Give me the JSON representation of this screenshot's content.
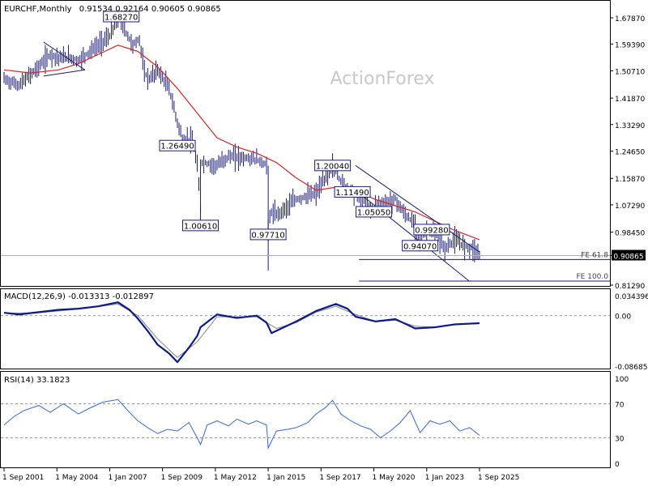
{
  "header": {
    "symbol": "EURCHF,Monthly",
    "ohlc": "0.91534 0.92164 0.90605 0.90865"
  },
  "watermark": "ActionForex",
  "colors": {
    "bars": "#1a1a7a",
    "sma": "#dd2222",
    "macd": "#0c1a8c",
    "signal": "#888888",
    "rsi": "#3366ee",
    "label_border": "#1a1a7a",
    "fe_line": "#1a1a7a",
    "grid_dash": "#999999"
  },
  "x_axis": {
    "labels": [
      "1 Sep 2001",
      "1 May 2004",
      "1 Jan 2007",
      "1 Sep 2009",
      "1 May 2012",
      "1 Jan 2015",
      "1 Sep 2017",
      "1 May 2020",
      "1 Jan 2023",
      "1 Sep 2025"
    ],
    "range": [
      "2001-09",
      "2025-09"
    ]
  },
  "chart_data": [
    {
      "type": "line",
      "subtype": "ohlc-bars",
      "title": "EURCHF,Monthly",
      "y_ticks": [
        "1.67870",
        "1.59390",
        "1.50710",
        "1.41870",
        "1.33290",
        "1.24650",
        "1.15870",
        "1.07290",
        "0.98450",
        "0.90865",
        "0.81290"
      ],
      "ylim": [
        0.8129,
        1.6787
      ],
      "last_price": "0.90865",
      "series": [
        {
          "name": "",
          "kind": "price",
          "x": [
            "2001-09",
            "2002-06",
            "2003-06",
            "2004-01",
            "2004-06",
            "2005-01",
            "2005-06",
            "2006-01",
            "2006-06",
            "2007-01",
            "2007-07",
            "2007-10",
            "2008-03",
            "2008-07",
            "2008-10",
            "2009-01",
            "2009-06",
            "2010-01",
            "2010-06",
            "2010-09",
            "2011-03",
            "2011-06",
            "2011-08",
            "2011-09",
            "2012-06",
            "2013-01",
            "2014-06",
            "2014-12",
            "2015-01",
            "2015-03",
            "2015-06",
            "2016-06",
            "2017-06",
            "2018-01",
            "2018-04",
            "2018-10",
            "2019-06",
            "2019-12",
            "2020-05",
            "2020-06",
            "2021-06",
            "2021-12",
            "2022-06",
            "2022-09",
            "2023-01",
            "2023-06",
            "2023-12",
            "2024-06",
            "2024-12",
            "2025-06",
            "2025-09"
          ],
          "y": [
            1.48,
            1.46,
            1.52,
            1.56,
            1.55,
            1.55,
            1.54,
            1.57,
            1.59,
            1.62,
            1.68,
            1.64,
            1.59,
            1.61,
            1.5,
            1.48,
            1.51,
            1.45,
            1.34,
            1.29,
            1.28,
            1.2,
            1.06,
            1.21,
            1.2,
            1.23,
            1.22,
            1.2,
            1.0,
            1.05,
            1.04,
            1.09,
            1.11,
            1.17,
            1.2,
            1.14,
            1.11,
            1.08,
            1.05,
            1.07,
            1.09,
            1.04,
            1.01,
            0.96,
            0.99,
            0.98,
            0.93,
            0.96,
            0.94,
            0.93,
            0.91
          ]
        },
        {
          "name": "",
          "kind": "sma",
          "x": [
            "2001-09",
            "2003-01",
            "2004-06",
            "2005-06",
            "2006-06",
            "2007-06",
            "2008-06",
            "2009-06",
            "2010-06",
            "2011-06",
            "2012-06",
            "2013-06",
            "2014-06",
            "2015-06",
            "2016-06",
            "2017-06",
            "2018-06",
            "2019-06",
            "2020-06",
            "2021-06",
            "2022-06",
            "2023-06",
            "2024-06",
            "2025-09"
          ],
          "y": [
            1.51,
            1.5,
            1.51,
            1.53,
            1.56,
            1.59,
            1.57,
            1.52,
            1.45,
            1.37,
            1.29,
            1.26,
            1.24,
            1.21,
            1.16,
            1.12,
            1.13,
            1.12,
            1.09,
            1.07,
            1.05,
            1.02,
            0.99,
            0.96
          ]
        }
      ],
      "annotations": [
        {
          "text": "1.68270",
          "x": "2007-08",
          "y": 1.6827
        },
        {
          "text": "1.26490",
          "x": "2010-06",
          "y": 1.2649
        },
        {
          "text": "1.00610",
          "x": "2011-08",
          "y": 1.0061
        },
        {
          "text": "0.97710",
          "x": "2015-01",
          "y": 0.9771
        },
        {
          "text": "1.20040",
          "x": "2018-04",
          "y": 1.2004
        },
        {
          "text": "1.11490",
          "x": "2019-04",
          "y": 1.1149
        },
        {
          "text": "1.05050",
          "x": "2020-05",
          "y": 1.0505
        },
        {
          "text": "0.99280",
          "x": "2023-04",
          "y": 0.9928
        },
        {
          "text": "0.94070",
          "x": "2022-09",
          "y": 0.9407
        }
      ],
      "fe_levels": [
        {
          "text": "FE 61.8",
          "y": 0.896
        },
        {
          "text": "FE 100.0",
          "y": 0.826
        }
      ]
    },
    {
      "type": "line",
      "title": "MACD(12,26,9) -0.013313 -0.012897",
      "y_ticks": [
        "0.034396",
        "0.00",
        "-0.086854"
      ],
      "ylim": [
        -0.086854,
        0.034396
      ],
      "zero_line": 0.0,
      "series": [
        {
          "name": "",
          "kind": "macd",
          "x": [
            "2001-09",
            "2002-06",
            "2003-06",
            "2004-06",
            "2005-06",
            "2006-06",
            "2007-06",
            "2008-01",
            "2008-06",
            "2009-01",
            "2009-06",
            "2010-01",
            "2010-06",
            "2011-01",
            "2011-06",
            "2011-08",
            "2012-06",
            "2013-06",
            "2014-06",
            "2014-12",
            "2015-03",
            "2016-06",
            "2017-06",
            "2018-06",
            "2019-01",
            "2019-06",
            "2020-06",
            "2021-06",
            "2022-06",
            "2023-06",
            "2024-06",
            "2025-09"
          ],
          "y": [
            0.005,
            0.002,
            0.006,
            0.01,
            0.012,
            0.016,
            0.023,
            0.01,
            -0.005,
            -0.03,
            -0.05,
            -0.065,
            -0.08,
            -0.055,
            -0.035,
            -0.02,
            0.002,
            -0.004,
            0.0,
            -0.012,
            -0.03,
            -0.01,
            0.008,
            0.02,
            0.012,
            -0.002,
            -0.01,
            -0.006,
            -0.022,
            -0.02,
            -0.015,
            -0.013
          ]
        },
        {
          "name": "",
          "kind": "signal",
          "x": [
            "2001-09",
            "2003-06",
            "2005-06",
            "2007-06",
            "2008-06",
            "2009-06",
            "2010-06",
            "2011-06",
            "2012-06",
            "2014-06",
            "2015-06",
            "2016-06",
            "2017-06",
            "2018-06",
            "2019-06",
            "2020-06",
            "2021-06",
            "2022-06",
            "2023-06",
            "2024-06",
            "2025-09"
          ],
          "y": [
            0.004,
            0.005,
            0.011,
            0.02,
            0.0,
            -0.04,
            -0.072,
            -0.045,
            -0.002,
            -0.002,
            -0.022,
            -0.012,
            0.006,
            0.016,
            0.002,
            -0.01,
            -0.008,
            -0.018,
            -0.02,
            -0.016,
            -0.013
          ]
        }
      ]
    },
    {
      "type": "line",
      "title": "RSI(14) 33.1823",
      "y_ticks": [
        "100",
        "70",
        "30",
        "0"
      ],
      "ylim": [
        0,
        100
      ],
      "levels": [
        70,
        30
      ],
      "series": [
        {
          "name": "",
          "kind": "rsi",
          "x": [
            "2001-09",
            "2002-03",
            "2002-09",
            "2003-06",
            "2004-01",
            "2004-09",
            "2005-06",
            "2006-01",
            "2006-09",
            "2007-06",
            "2007-12",
            "2008-06",
            "2008-12",
            "2009-06",
            "2009-12",
            "2010-06",
            "2011-01",
            "2011-06",
            "2011-08",
            "2011-12",
            "2012-06",
            "2013-01",
            "2013-06",
            "2014-01",
            "2014-06",
            "2014-12",
            "2015-01",
            "2015-06",
            "2016-01",
            "2016-06",
            "2017-01",
            "2017-06",
            "2017-12",
            "2018-04",
            "2018-09",
            "2019-03",
            "2019-09",
            "2020-03",
            "2020-09",
            "2021-03",
            "2021-09",
            "2022-03",
            "2022-09",
            "2023-03",
            "2023-09",
            "2024-03",
            "2024-09",
            "2025-03",
            "2025-09"
          ],
          "y": [
            45,
            55,
            62,
            68,
            60,
            70,
            58,
            65,
            72,
            75,
            62,
            50,
            42,
            35,
            40,
            38,
            48,
            30,
            22,
            45,
            50,
            44,
            52,
            46,
            50,
            45,
            18,
            38,
            40,
            42,
            48,
            58,
            66,
            74,
            58,
            50,
            44,
            40,
            30,
            38,
            48,
            62,
            36,
            50,
            46,
            50,
            38,
            42,
            33
          ]
        }
      ]
    }
  ]
}
